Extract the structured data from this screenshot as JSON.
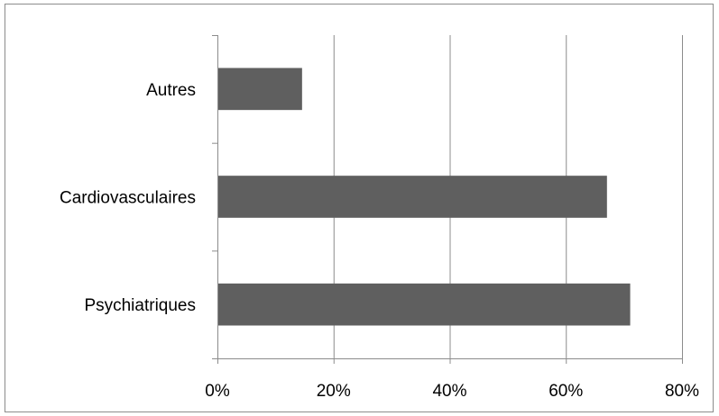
{
  "chart_data": {
    "type": "bar",
    "orientation": "horizontal",
    "categories": [
      "Psychiatriques",
      "Cardiovasculaires",
      "Autres"
    ],
    "values": [
      71,
      67,
      14.5
    ],
    "xlim": [
      0,
      80
    ],
    "x_ticks": [
      0,
      20,
      40,
      60,
      80
    ],
    "x_tick_labels": [
      "0%",
      "20%",
      "40%",
      "60%",
      "80%"
    ],
    "grid": "vertical",
    "bar_color": "#5f5f5f",
    "title": "",
    "xlabel": "",
    "ylabel": ""
  }
}
